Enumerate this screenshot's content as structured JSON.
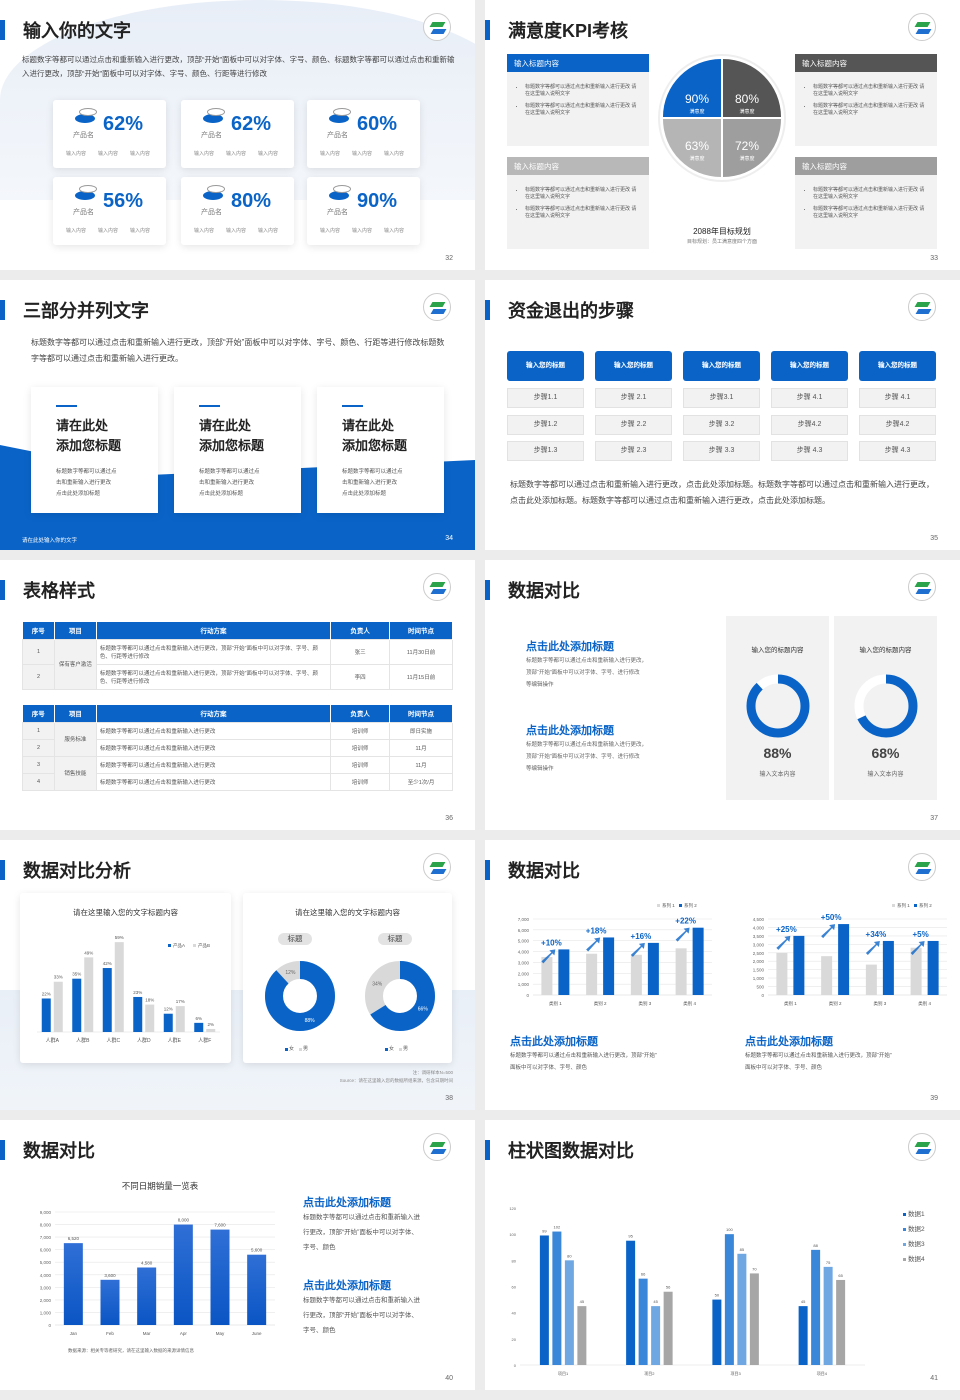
{
  "colors": {
    "blue": "#0a64c8",
    "gray": "#d9d9d9",
    "dark_gray": "#555555",
    "mid_gray": "#9e9e9e",
    "light_gray": "#b8b8b8"
  },
  "logo_icon": "school-emblem-logo",
  "s32": {
    "title": "输入你的文字",
    "desc": "标题数字等都可以通过点击和重新输入进行更改，顶部“开始”面板中可以对字体、字号、颜色、标题数字等都可以通过点击和重新输入进行更改，顶部“开始”面板中可以对字体、字号、颜色、行距等进行修改",
    "page": "32",
    "cards": [
      {
        "value": "62%",
        "label": "产品名",
        "subs": [
          "输入内容",
          "输入内容",
          "输入内容"
        ]
      },
      {
        "value": "62%",
        "label": "产品名",
        "subs": [
          "输入内容",
          "输入内容",
          "输入内容"
        ]
      },
      {
        "value": "60%",
        "label": "产品名",
        "subs": [
          "输入内容",
          "输入内容",
          "输入内容"
        ]
      },
      {
        "value": "56%",
        "label": "产品名",
        "subs": [
          "输入内容",
          "输入内容",
          "输入内容"
        ]
      },
      {
        "value": "80%",
        "label": "产品名",
        "subs": [
          "输入内容",
          "输入内容",
          "输入内容"
        ]
      },
      {
        "value": "90%",
        "label": "产品名",
        "subs": [
          "输入内容",
          "输入内容",
          "输入内容"
        ]
      }
    ]
  },
  "s33": {
    "title": "满意度KPI考核",
    "page": "33",
    "boxes": [
      {
        "title": "输入标题内容",
        "bullets": [
          "标题数字等都可以通过点击和重新输入进行更改 请在这里输入说明文字",
          "标题数字等都可以通过点击和重新输入进行更改 请在这里输入说明文字"
        ]
      },
      {
        "title": "输入标题内容",
        "bullets": [
          "标题数字等都可以通过点击和重新输入进行更改 请在这里输入说明文字",
          "标题数字等都可以通过点击和重新输入进行更改 请在这里输入说明文字"
        ]
      },
      {
        "title": "输入标题内容",
        "bullets": [
          "标题数字等都可以通过点击和重新输入进行更改 请在这里输入说明文字",
          "标题数字等都可以通过点击和重新输入进行更改 请在这里输入说明文字"
        ]
      },
      {
        "title": "输入标题内容",
        "bullets": [
          "标题数字等都可以通过点击和重新输入进行更改 请在这里输入说明文字",
          "标题数字等都可以通过点击和重新输入进行更改 请在这里输入说明文字"
        ]
      }
    ],
    "quadrants": [
      {
        "value": "90%",
        "label": "满意度"
      },
      {
        "value": "80%",
        "label": "满意度"
      },
      {
        "value": "63%",
        "label": "满意度"
      },
      {
        "value": "72%",
        "label": "满意度"
      }
    ],
    "plan_title": "2088年目标规划",
    "plan_sub": "目标规划：员工满意度四个方面"
  },
  "s34": {
    "title": "三部分并列文字",
    "desc": "标题数字等都可以通过点击和重新输入进行更改，顶部“开始”面板中可以对字体、字号、颜色、行距等进行修改标题数字等都可以通过点击和重新输入进行更改。",
    "footer": "请在此处输入你的文字",
    "page": "34",
    "cards": [
      {
        "t1": "请在此处",
        "t2": "添加您标题",
        "text": [
          "标题数字等都可以通过点",
          "击和重新输入进行更改",
          "点击此处添加标题"
        ]
      },
      {
        "t1": "请在此处",
        "t2": "添加您标题",
        "text": [
          "标题数字等都可以通过点",
          "击和重新输入进行更改",
          "点击此处添加标题"
        ]
      },
      {
        "t1": "请在此处",
        "t2": "添加您标题",
        "text": [
          "标题数字等都可以通过点",
          "击和重新输入进行更改",
          "点击此处添加标题"
        ]
      }
    ]
  },
  "s35": {
    "title": "资金退出的步骤",
    "page": "35",
    "desc": "标题数字等都可以通过点击和重新输入进行更改，点击此处添加标题。标题数字等都可以通过点击和重新输入进行更改，点击此处添加标题。标题数字等都可以通过点击和重新输入进行更改，点击此处添加标题。",
    "columns": [
      {
        "header": "输入您的标题",
        "steps": [
          "步骤1.1",
          "步骤1.2",
          "步骤1.3"
        ]
      },
      {
        "header": "输入您的标题",
        "steps": [
          "步骤 2.1",
          "步骤 2.2",
          "步骤 2.3"
        ]
      },
      {
        "header": "输入您的标题",
        "steps": [
          "步骤3.1",
          "步骤 3.2",
          "步骤 3.3"
        ]
      },
      {
        "header": "输入您的标题",
        "steps": [
          "步骤 4.1",
          "步骤4.2",
          "步骤 4.3"
        ]
      },
      {
        "header": "输入您的标题",
        "steps": [
          "步骤 4.1",
          "步骤4.2",
          "步骤 4.3"
        ]
      }
    ]
  },
  "s36": {
    "title": "表格样式",
    "page": "36",
    "headers": [
      "序号",
      "项目",
      "行动方案",
      "负责人",
      "时间节点"
    ],
    "table1": {
      "group": "保有客户激活",
      "rows": [
        {
          "no": "1",
          "action": "标题数字等都可以通过点击和重新输入进行更改，顶部“开始”面板中可以对字体、字号、颜色、行距等进行修改",
          "owner": "张三",
          "time": "11月30日前"
        },
        {
          "no": "2",
          "action": "标题数字等都可以通过点击和重新输入进行更改，顶部“开始”面板中可以对字体、字号、颜色、行距等进行修改",
          "owner": "李四",
          "time": "11月15日前"
        }
      ]
    },
    "table2": {
      "groups": [
        "服务标准",
        "销售技能"
      ],
      "rows": [
        {
          "no": "1",
          "action": "标题数字等都可以通过点击和重新输入进行更改",
          "owner": "培训师",
          "time": "即日实施"
        },
        {
          "no": "2",
          "action": "标题数字等都可以通过点击和重新输入进行更改",
          "owner": "培训师",
          "time": "11月"
        },
        {
          "no": "3",
          "action": "标题数字等都可以通过点击和重新输入进行更改",
          "owner": "培训师",
          "time": "11月"
        },
        {
          "no": "4",
          "action": "标题数字等都可以通过点击和重新输入进行更改",
          "owner": "培训师",
          "time": "至少1次/月"
        }
      ]
    }
  },
  "s37": {
    "title": "数据对比",
    "page": "37",
    "blocks": [
      {
        "title": "点击此处添加标题",
        "text": [
          "标题数字等都可以通过点击和重新输入进行更改，",
          "顶部“开始”面板中可以对字体、字号、进行修改",
          "等编辑操作"
        ]
      },
      {
        "title": "点击此处添加标题",
        "text": [
          "标题数字等都可以通过点击和重新输入进行更改，",
          "顶部“开始”面板中可以对字体、字号、进行修改",
          "等编辑操作"
        ]
      }
    ],
    "donuts": [
      {
        "title": "输入您的标题内容",
        "percent": 88,
        "value": "88%",
        "caption": "输入文本内容"
      },
      {
        "title": "输入您的标题内容",
        "percent": 68,
        "value": "68%",
        "caption": "输入文本内容"
      }
    ]
  },
  "s38": {
    "title": "数据对比分析",
    "page": "38",
    "note": "注：调研样本N=500",
    "source": "Source：请在这里输入您的数据所组来源，包含日期时间",
    "pie_title": "请在这里输入您的文字标题内容",
    "pies": [
      {
        "tag": "标题",
        "main": 88,
        "main_label": "88%",
        "rest_label": "12%",
        "legend": [
          "女",
          "男"
        ]
      },
      {
        "tag": "标题",
        "main": 66,
        "main_label": "66%",
        "rest_label": "34%",
        "legend": [
          "女",
          "男"
        ]
      }
    ]
  },
  "s39": {
    "title": "数据对比",
    "page": "39",
    "blocks": [
      {
        "title": "点击此处添加标题",
        "text": [
          "标题数字等都可以通过点击和重新输入进行更改，顶部“开始”",
          "面板中可以对字体、字号、颜色"
        ]
      },
      {
        "title": "点击此处添加标题",
        "text": [
          "标题数字等都可以通过点击和重新输入进行更改，顶部“开始”",
          "面板中可以对字体、字号、颜色"
        ]
      }
    ]
  },
  "s40": {
    "title": "数据对比",
    "page": "40",
    "source": "数据来源：相关专等者研究，请在这里输入数据的来源详情信息",
    "blocks": [
      {
        "title": "点击此处添加标题",
        "text": [
          "标题数字等都可以通过点击和重新输入进",
          "行更改，顶部“开始”面板中可以对字体、",
          "字号、颜色"
        ]
      },
      {
        "title": "点击此处添加标题",
        "text": [
          "标题数字等都可以通过点击和重新输入进",
          "行更改，顶部“开始”面板中可以对字体、",
          "字号、颜色"
        ]
      }
    ]
  },
  "s41": {
    "title": "柱状图数据对比",
    "page": "41"
  },
  "chart_data": [
    {
      "id": "c38",
      "type": "bar",
      "title": "请在这里输入您的文字标题内容",
      "categories": [
        "人群A",
        "人群B",
        "人群C",
        "人群D",
        "人群E",
        "人群F"
      ],
      "series": [
        {
          "name": "产品A",
          "values": [
            22,
            35,
            42,
            23,
            12,
            6
          ],
          "labels": [
            "22%",
            "35%",
            "42%",
            "23%",
            "12%",
            "6%"
          ]
        },
        {
          "name": "产品B",
          "values": [
            33,
            49,
            59,
            18,
            17,
            2
          ],
          "labels": [
            "33%",
            "49%",
            "59%",
            "18%",
            "17%",
            "2%"
          ]
        }
      ],
      "ylim": [
        0,
        65
      ],
      "legend": "top-right",
      "grid": false
    },
    {
      "id": "c39a",
      "type": "bar",
      "categories": [
        "类别 1",
        "类别 2",
        "类别 3",
        "类别 4"
      ],
      "series": [
        {
          "name": "系列 1",
          "values": [
            3500,
            3800,
            3700,
            4300
          ]
        },
        {
          "name": "系列 2",
          "values": [
            4200,
            5300,
            4800,
            6200
          ]
        }
      ],
      "growth": [
        "+10%",
        "+18%",
        "+16%",
        "+22%"
      ],
      "yticks": [
        "0",
        "1,000",
        "2,000",
        "3,000",
        "4,000",
        "5,000",
        "6,000",
        "7,000"
      ],
      "ylim": [
        0,
        7000
      ],
      "legend": "top-right",
      "grid": true
    },
    {
      "id": "c39b",
      "type": "bar",
      "categories": [
        "类别 1",
        "类别 2",
        "类别 3",
        "类别 4"
      ],
      "series": [
        {
          "name": "系列 1",
          "values": [
            2500,
            2300,
            1800,
            2800
          ]
        },
        {
          "name": "系列 2",
          "values": [
            3500,
            4200,
            3200,
            3200
          ]
        }
      ],
      "growth": [
        "+25%",
        "+50%",
        "+34%",
        "+5%"
      ],
      "yticks": [
        "0",
        "500",
        "1,000",
        "1,500",
        "2,000",
        "2,500",
        "3,000",
        "3,500",
        "4,000",
        "4,500"
      ],
      "ylim": [
        0,
        4500
      ],
      "legend": "top-right",
      "grid": true
    },
    {
      "id": "c40",
      "type": "bar",
      "title": "不同日期销量一览表",
      "categories": [
        "Jan",
        "Feb",
        "Mar",
        "Apr",
        "May",
        "June"
      ],
      "series": [
        {
          "values": [
            6520,
            3600,
            4580,
            8000,
            7600,
            5600
          ],
          "labels": [
            "6,520",
            "3,600",
            "4,580",
            "8,000",
            "7,600",
            "5,600"
          ]
        }
      ],
      "yticks": [
        "0",
        "1,000",
        "2,000",
        "3,000",
        "4,000",
        "5,000",
        "6,000",
        "7,000",
        "8,000",
        "9,000"
      ],
      "ylim": [
        0,
        9000
      ],
      "grid": true
    },
    {
      "id": "c41",
      "type": "bar",
      "categories": [
        "项目1",
        "项目2",
        "项目3",
        "项目4"
      ],
      "series": [
        {
          "name": "数据1",
          "values": [
            99,
            95,
            50,
            45
          ]
        },
        {
          "name": "数据2",
          "values": [
            102,
            66,
            100,
            88
          ]
        },
        {
          "name": "数据3",
          "values": [
            80,
            45,
            85,
            75
          ]
        },
        {
          "name": "数据4",
          "values": [
            45,
            56,
            70,
            65
          ]
        }
      ],
      "yticks": [
        "0",
        "20",
        "40",
        "60",
        "80",
        "100",
        "120"
      ],
      "ylim": [
        0,
        120
      ],
      "legend": "right",
      "grid": false
    }
  ]
}
